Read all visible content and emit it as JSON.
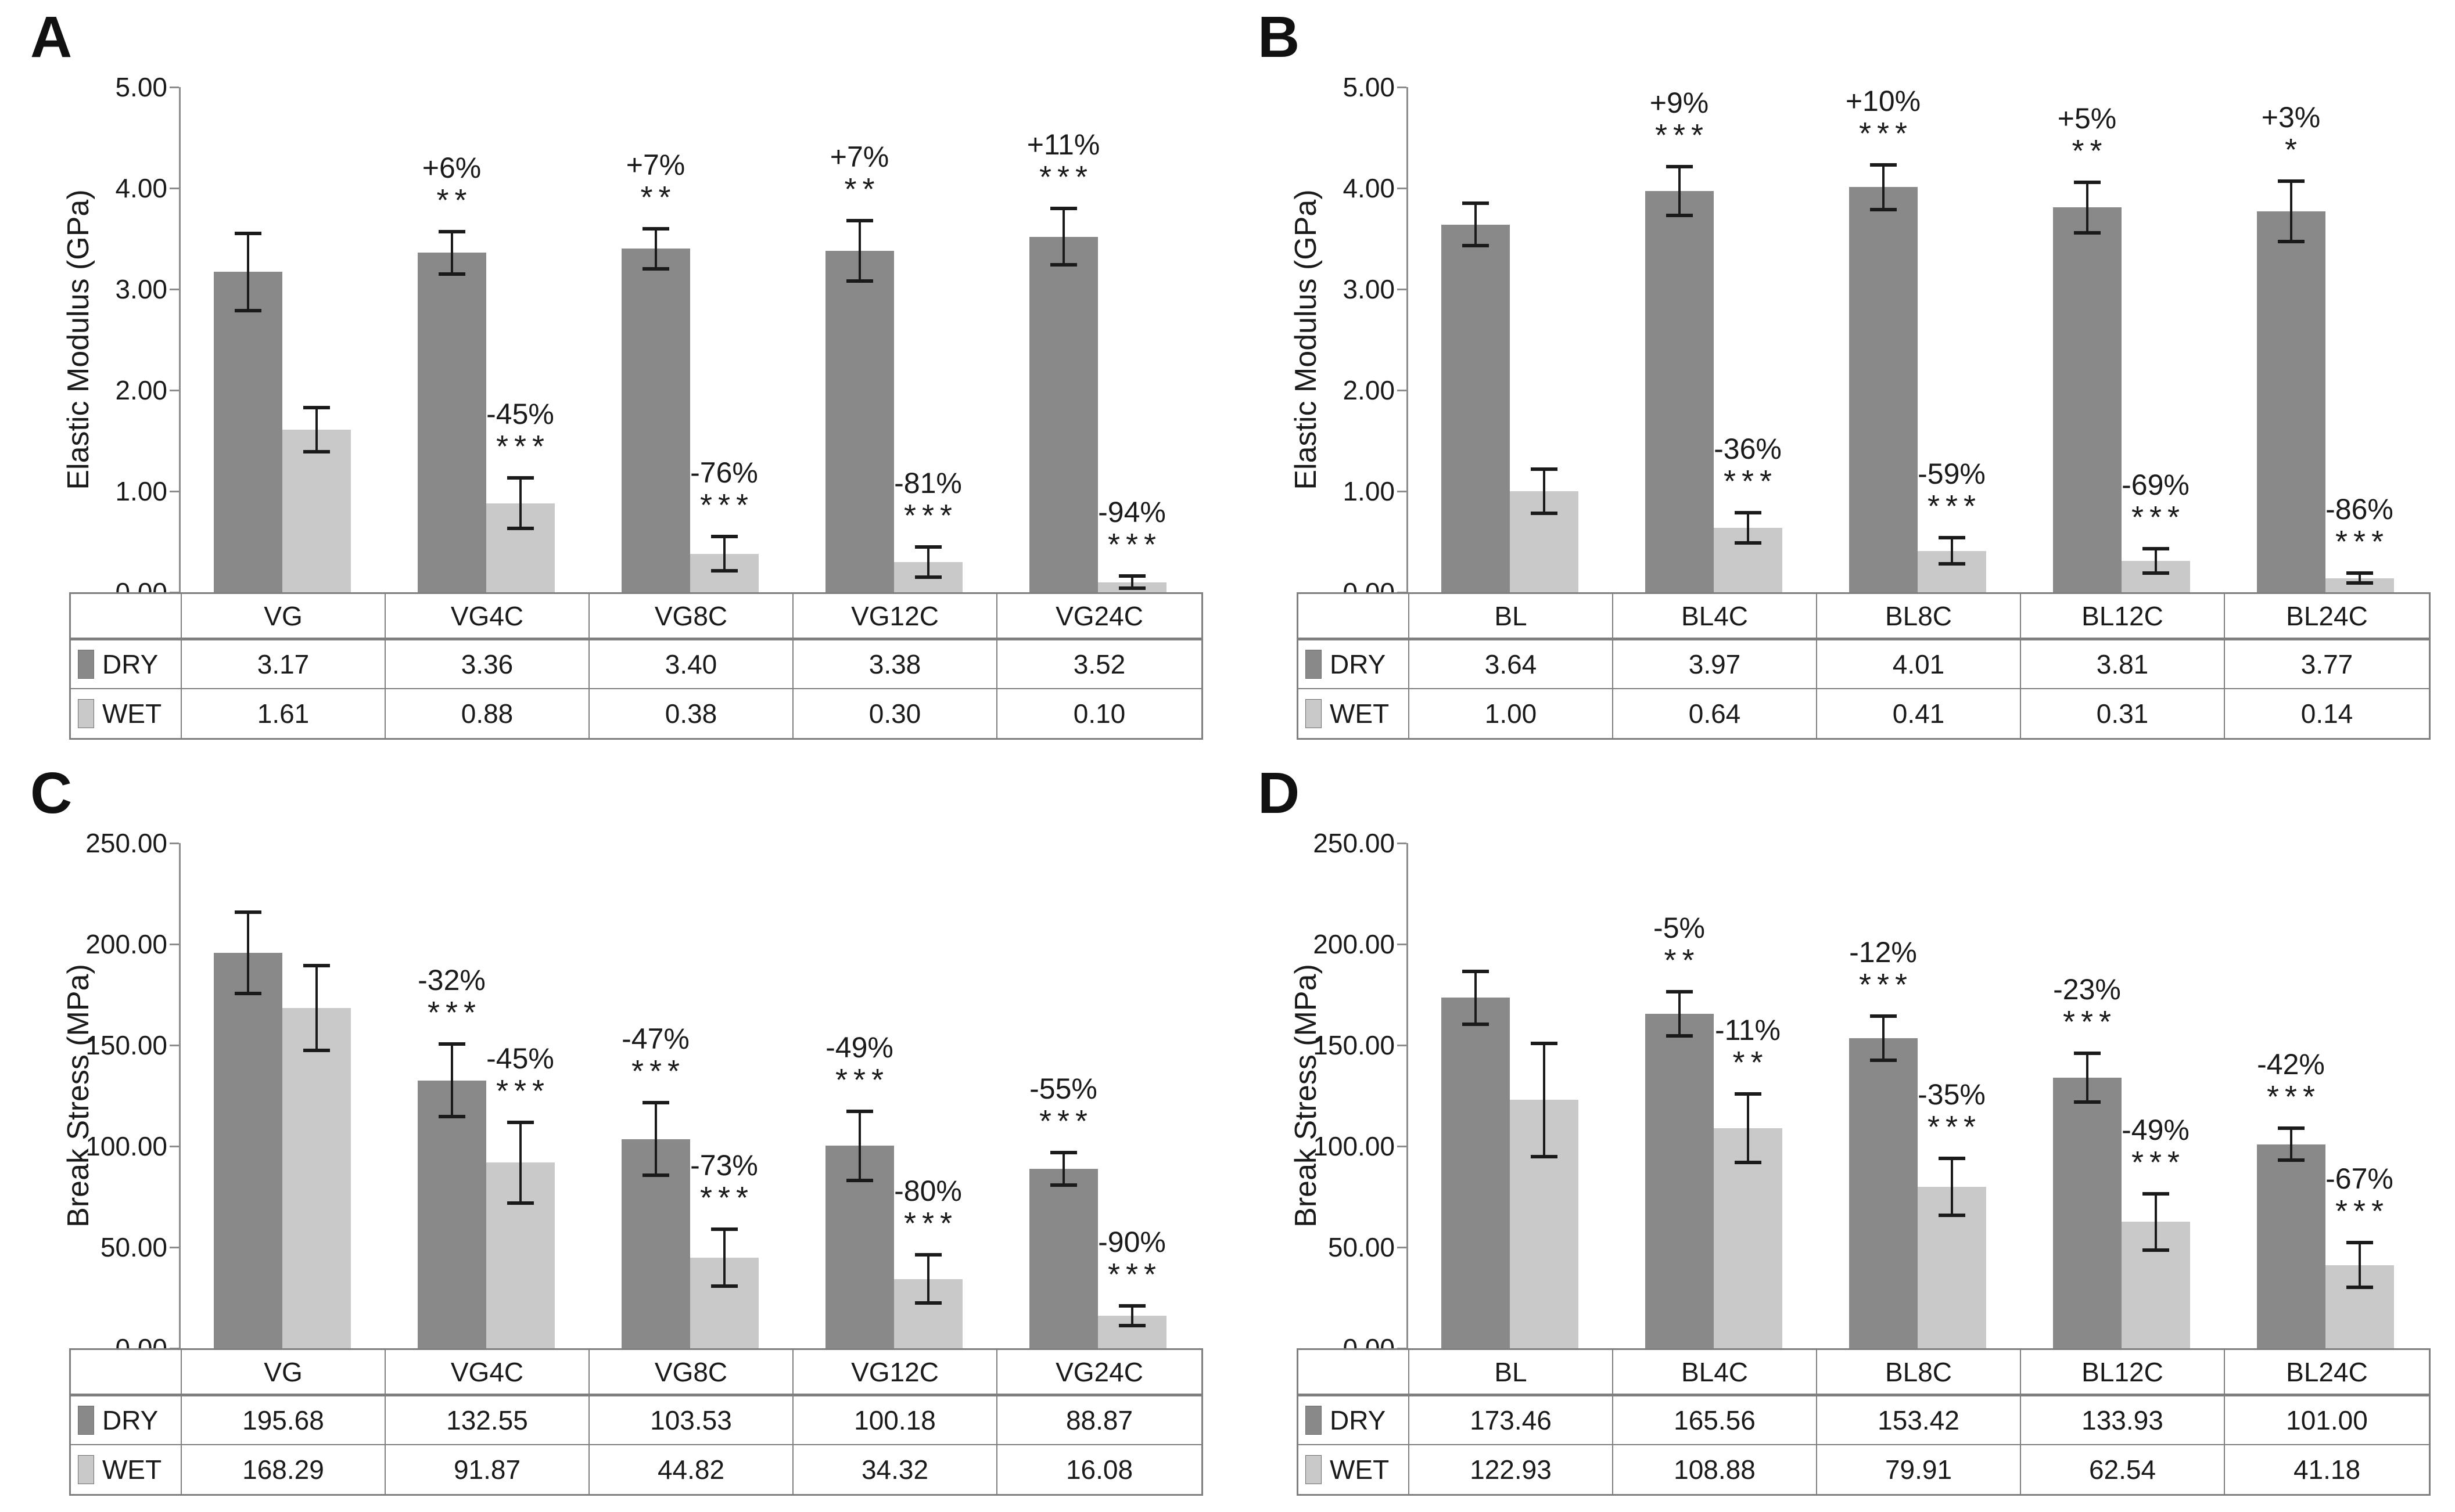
{
  "figure": {
    "background": "#ffffff",
    "text_color": "#1a1a1a",
    "axis_color": "#8c8c8c",
    "table_border_color": "#7f7f7f",
    "series_colors": {
      "DRY": "#898989",
      "WET": "#c9c9c9"
    }
  },
  "chart_data": [
    {
      "panel_label": "A",
      "type": "bar",
      "ylabel": "Elastic Modulus (GPa)",
      "ylim": [
        0,
        5
      ],
      "ytick_step": 1,
      "grid": false,
      "legend_position": "table-left",
      "categories": [
        "VG",
        "VG4C",
        "VG8C",
        "VG12C",
        "VG24C"
      ],
      "series": [
        {
          "name": "DRY",
          "values": [
            3.17,
            3.36,
            3.4,
            3.38,
            3.52
          ],
          "errors": [
            0.38,
            0.21,
            0.2,
            0.3,
            0.28
          ],
          "annotations": [
            null,
            {
              "pct": "+6%",
              "stars": "**"
            },
            {
              "pct": "+7%",
              "stars": "**"
            },
            {
              "pct": "+7%",
              "stars": "**"
            },
            {
              "pct": "+11%",
              "stars": "***"
            }
          ]
        },
        {
          "name": "WET",
          "values": [
            1.61,
            0.88,
            0.38,
            0.3,
            0.1
          ],
          "errors": [
            0.22,
            0.25,
            0.17,
            0.15,
            0.06
          ],
          "annotations": [
            null,
            {
              "pct": "-45%",
              "stars": "***"
            },
            {
              "pct": "-76%",
              "stars": "***"
            },
            {
              "pct": "-81%",
              "stars": "***"
            },
            {
              "pct": "-94%",
              "stars": "***"
            }
          ]
        }
      ]
    },
    {
      "panel_label": "B",
      "type": "bar",
      "ylabel": "Elastic Modulus (GPa)",
      "ylim": [
        0,
        5
      ],
      "ytick_step": 1,
      "grid": false,
      "legend_position": "table-left",
      "categories": [
        "BL",
        "BL4C",
        "BL8C",
        "BL12C",
        "BL24C"
      ],
      "series": [
        {
          "name": "DRY",
          "values": [
            3.64,
            3.97,
            4.01,
            3.81,
            3.77
          ],
          "errors": [
            0.21,
            0.24,
            0.22,
            0.25,
            0.3
          ],
          "annotations": [
            null,
            {
              "pct": "+9%",
              "stars": "***"
            },
            {
              "pct": "+10%",
              "stars": "***"
            },
            {
              "pct": "+5%",
              "stars": "**"
            },
            {
              "pct": "+3%",
              "stars": "*"
            }
          ]
        },
        {
          "name": "WET",
          "values": [
            1.0,
            0.64,
            0.41,
            0.31,
            0.14
          ],
          "errors": [
            0.22,
            0.15,
            0.13,
            0.12,
            0.05
          ],
          "annotations": [
            null,
            {
              "pct": "-36%",
              "stars": "***"
            },
            {
              "pct": "-59%",
              "stars": "***"
            },
            {
              "pct": "-69%",
              "stars": "***"
            },
            {
              "pct": "-86%",
              "stars": "***"
            }
          ]
        }
      ]
    },
    {
      "panel_label": "C",
      "type": "bar",
      "ylabel": "Break Stress (MPa)",
      "ylim": [
        0,
        250
      ],
      "ytick_step": 50,
      "grid": false,
      "legend_position": "table-left",
      "categories": [
        "VG",
        "VG4C",
        "VG8C",
        "VG12C",
        "VG24C"
      ],
      "series": [
        {
          "name": "DRY",
          "values": [
            195.68,
            132.55,
            103.53,
            100.18,
            88.87
          ],
          "errors": [
            20,
            18,
            18,
            17,
            8
          ],
          "annotations": [
            null,
            {
              "pct": "-32%",
              "stars": "***"
            },
            {
              "pct": "-47%",
              "stars": "***"
            },
            {
              "pct": "-49%",
              "stars": "***"
            },
            {
              "pct": "-55%",
              "stars": "***"
            }
          ]
        },
        {
          "name": "WET",
          "values": [
            168.29,
            91.87,
            44.82,
            34.32,
            16.08
          ],
          "errors": [
            21,
            20,
            14,
            12,
            5
          ],
          "annotations": [
            null,
            {
              "pct": "-45%",
              "stars": "***"
            },
            {
              "pct": "-73%",
              "stars": "***"
            },
            {
              "pct": "-80%",
              "stars": "***"
            },
            {
              "pct": "-90%",
              "stars": "***"
            }
          ]
        }
      ]
    },
    {
      "panel_label": "D",
      "type": "bar",
      "ylabel": "Break Stress (MPa)",
      "ylim": [
        0,
        250
      ],
      "ytick_step": 50,
      "grid": false,
      "legend_position": "table-left",
      "categories": [
        "BL",
        "BL4C",
        "BL8C",
        "BL12C",
        "BL24C"
      ],
      "series": [
        {
          "name": "DRY",
          "values": [
            173.46,
            165.56,
            153.42,
            133.93,
            101.0
          ],
          "errors": [
            13,
            11,
            11,
            12,
            8
          ],
          "annotations": [
            null,
            {
              "pct": "-5%",
              "stars": "**"
            },
            {
              "pct": "-12%",
              "stars": "***"
            },
            {
              "pct": "-23%",
              "stars": "***"
            },
            {
              "pct": "-42%",
              "stars": "***"
            }
          ]
        },
        {
          "name": "WET",
          "values": [
            122.93,
            108.88,
            79.91,
            62.54,
            41.18
          ],
          "errors": [
            28,
            17,
            14,
            14,
            11
          ],
          "annotations": [
            null,
            {
              "pct": "-11%",
              "stars": "**"
            },
            {
              "pct": "-35%",
              "stars": "***"
            },
            {
              "pct": "-49%",
              "stars": "***"
            },
            {
              "pct": "-67%",
              "stars": "***"
            }
          ]
        }
      ]
    }
  ]
}
